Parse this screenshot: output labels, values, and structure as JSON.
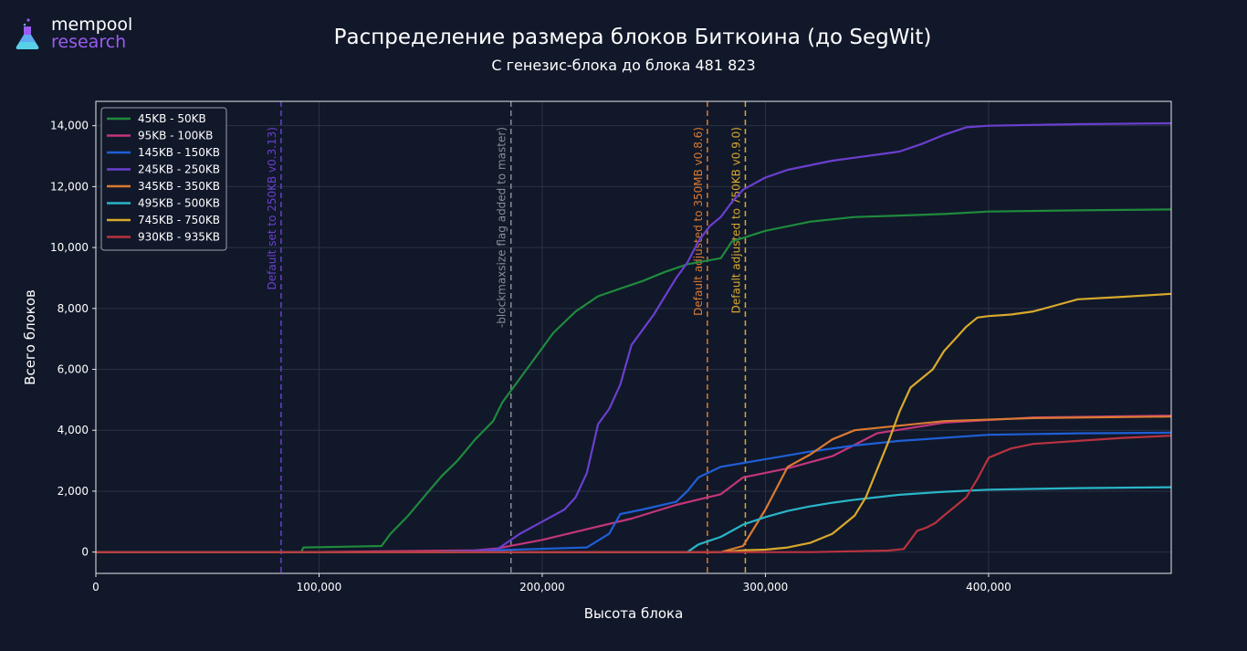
{
  "brand": {
    "name": "mempool",
    "subname": "research",
    "accent": "#9a5cf0"
  },
  "chart_data": {
    "type": "line",
    "title": "Распределение размера блоков Биткоина (до SegWit)",
    "subtitle": "С генезис-блока до блока 481 823",
    "xlabel": "Высота блока",
    "ylabel": "Всего блоков",
    "xlim": [
      0,
      481823
    ],
    "ylim": [
      -700,
      14800
    ],
    "xticks": [
      0,
      100000,
      200000,
      300000,
      400000
    ],
    "xtick_labels": [
      "0",
      "100,000",
      "200,000",
      "300,000",
      "400,000"
    ],
    "yticks": [
      0,
      2000,
      4000,
      6000,
      8000,
      10000,
      12000,
      14000
    ],
    "ytick_labels": [
      "0",
      "2,000",
      "4,000",
      "6,000",
      "8,000",
      "10,000",
      "12,000",
      "14,000"
    ],
    "grid": true,
    "legend_position": "top-left",
    "series": [
      {
        "name": "45KB - 50KB",
        "color": "#1f8a3c",
        "x": [
          0,
          92000,
          93000,
          128000,
          132000,
          140000,
          148000,
          155000,
          162000,
          170000,
          178000,
          182000,
          186000,
          195000,
          205000,
          215000,
          225000,
          235000,
          245000,
          255000,
          265000,
          280000,
          285000,
          300000,
          320000,
          340000,
          360000,
          380000,
          400000,
          440000,
          481823
        ],
        "values": [
          0,
          0,
          150,
          200,
          600,
          1200,
          1900,
          2500,
          3000,
          3700,
          4300,
          4900,
          5300,
          6200,
          7200,
          7900,
          8400,
          8650,
          8900,
          9200,
          9450,
          9650,
          10200,
          10550,
          10850,
          11000,
          11050,
          11100,
          11180,
          11220,
          11250
        ]
      },
      {
        "name": "95KB - 100KB",
        "color": "#c2357c",
        "x": [
          0,
          95000,
          170000,
          180000,
          200000,
          220000,
          240000,
          260000,
          280000,
          290000,
          310000,
          330000,
          350000,
          380000,
          420000,
          481823
        ],
        "values": [
          0,
          0,
          60,
          120,
          400,
          750,
          1100,
          1550,
          1900,
          2450,
          2750,
          3150,
          3900,
          4250,
          4420,
          4480
        ]
      },
      {
        "name": "145KB - 150KB",
        "color": "#1f5fd6",
        "x": [
          0,
          150000,
          220000,
          230000,
          235000,
          245000,
          260000,
          265000,
          270000,
          280000,
          300000,
          320000,
          340000,
          360000,
          400000,
          440000,
          481823
        ],
        "values": [
          0,
          0,
          150,
          600,
          1250,
          1400,
          1650,
          2000,
          2450,
          2800,
          3050,
          3300,
          3500,
          3650,
          3850,
          3900,
          3920
        ]
      },
      {
        "name": "245KB - 250KB",
        "color": "#6a3fce",
        "x": [
          0,
          160000,
          180000,
          190000,
          200000,
          210000,
          215000,
          220000,
          225000,
          230000,
          235000,
          240000,
          245000,
          250000,
          255000,
          260000,
          265000,
          270000,
          275000,
          280000,
          285000,
          290000,
          300000,
          310000,
          320000,
          330000,
          340000,
          350000,
          360000,
          370000,
          380000,
          390000,
          400000,
          440000,
          481823
        ],
        "values": [
          0,
          0,
          100,
          600,
          1000,
          1400,
          1800,
          2600,
          4200,
          4700,
          5500,
          6800,
          7300,
          7800,
          8400,
          9000,
          9500,
          10200,
          10700,
          11000,
          11500,
          11900,
          12300,
          12550,
          12700,
          12850,
          12950,
          13050,
          13150,
          13400,
          13700,
          13950,
          14000,
          14050,
          14080
        ]
      },
      {
        "name": "345KB - 350KB",
        "color": "#d97a32",
        "x": [
          0,
          280000,
          290000,
          300000,
          310000,
          320000,
          330000,
          340000,
          360000,
          380000,
          420000,
          481823
        ],
        "values": [
          0,
          0,
          200,
          1400,
          2800,
          3200,
          3700,
          4000,
          4150,
          4300,
          4400,
          4450
        ]
      },
      {
        "name": "495KB - 500KB",
        "color": "#29b6c8",
        "x": [
          0,
          265000,
          270000,
          280000,
          290000,
          300000,
          310000,
          320000,
          330000,
          340000,
          350000,
          360000,
          380000,
          400000,
          440000,
          481823
        ],
        "values": [
          0,
          0,
          250,
          500,
          900,
          1150,
          1350,
          1500,
          1620,
          1720,
          1800,
          1880,
          1980,
          2050,
          2100,
          2130
        ]
      },
      {
        "name": "745KB - 750KB",
        "color": "#d9a92c",
        "x": [
          0,
          280000,
          290000,
          300000,
          310000,
          320000,
          330000,
          340000,
          345000,
          350000,
          355000,
          360000,
          365000,
          370000,
          375000,
          380000,
          385000,
          390000,
          395000,
          400000,
          410000,
          420000,
          430000,
          440000,
          460000,
          481823
        ],
        "values": [
          0,
          0,
          60,
          80,
          150,
          300,
          600,
          1200,
          1800,
          2700,
          3600,
          4600,
          5400,
          5700,
          6000,
          6600,
          7000,
          7400,
          7700,
          7750,
          7800,
          7900,
          8100,
          8300,
          8380,
          8480
        ]
      },
      {
        "name": "930KB - 935KB",
        "color": "#b8323f",
        "x": [
          0,
          320000,
          355000,
          362000,
          365000,
          368000,
          372000,
          376000,
          380000,
          385000,
          390000,
          395000,
          400000,
          410000,
          420000,
          440000,
          460000,
          481823
        ],
        "values": [
          0,
          0,
          50,
          100,
          400,
          700,
          800,
          950,
          1200,
          1500,
          1800,
          2400,
          3100,
          3400,
          3550,
          3650,
          3750,
          3820
        ]
      }
    ],
    "vlines": [
      {
        "x": 83000,
        "label": "Default set to 250KB v0.3.13)",
        "color": "#6a3fce"
      },
      {
        "x": 186000,
        "label": "-blockmaxsize flag added to master)",
        "color": "#8a8e99"
      },
      {
        "x": 274000,
        "label": "Default adjusted to 350MB v0.8.6)",
        "color": "#d97a32"
      },
      {
        "x": 291000,
        "label": "Default adjusted to 750KB v0.9.0)",
        "color": "#d9a92c"
      }
    ]
  }
}
